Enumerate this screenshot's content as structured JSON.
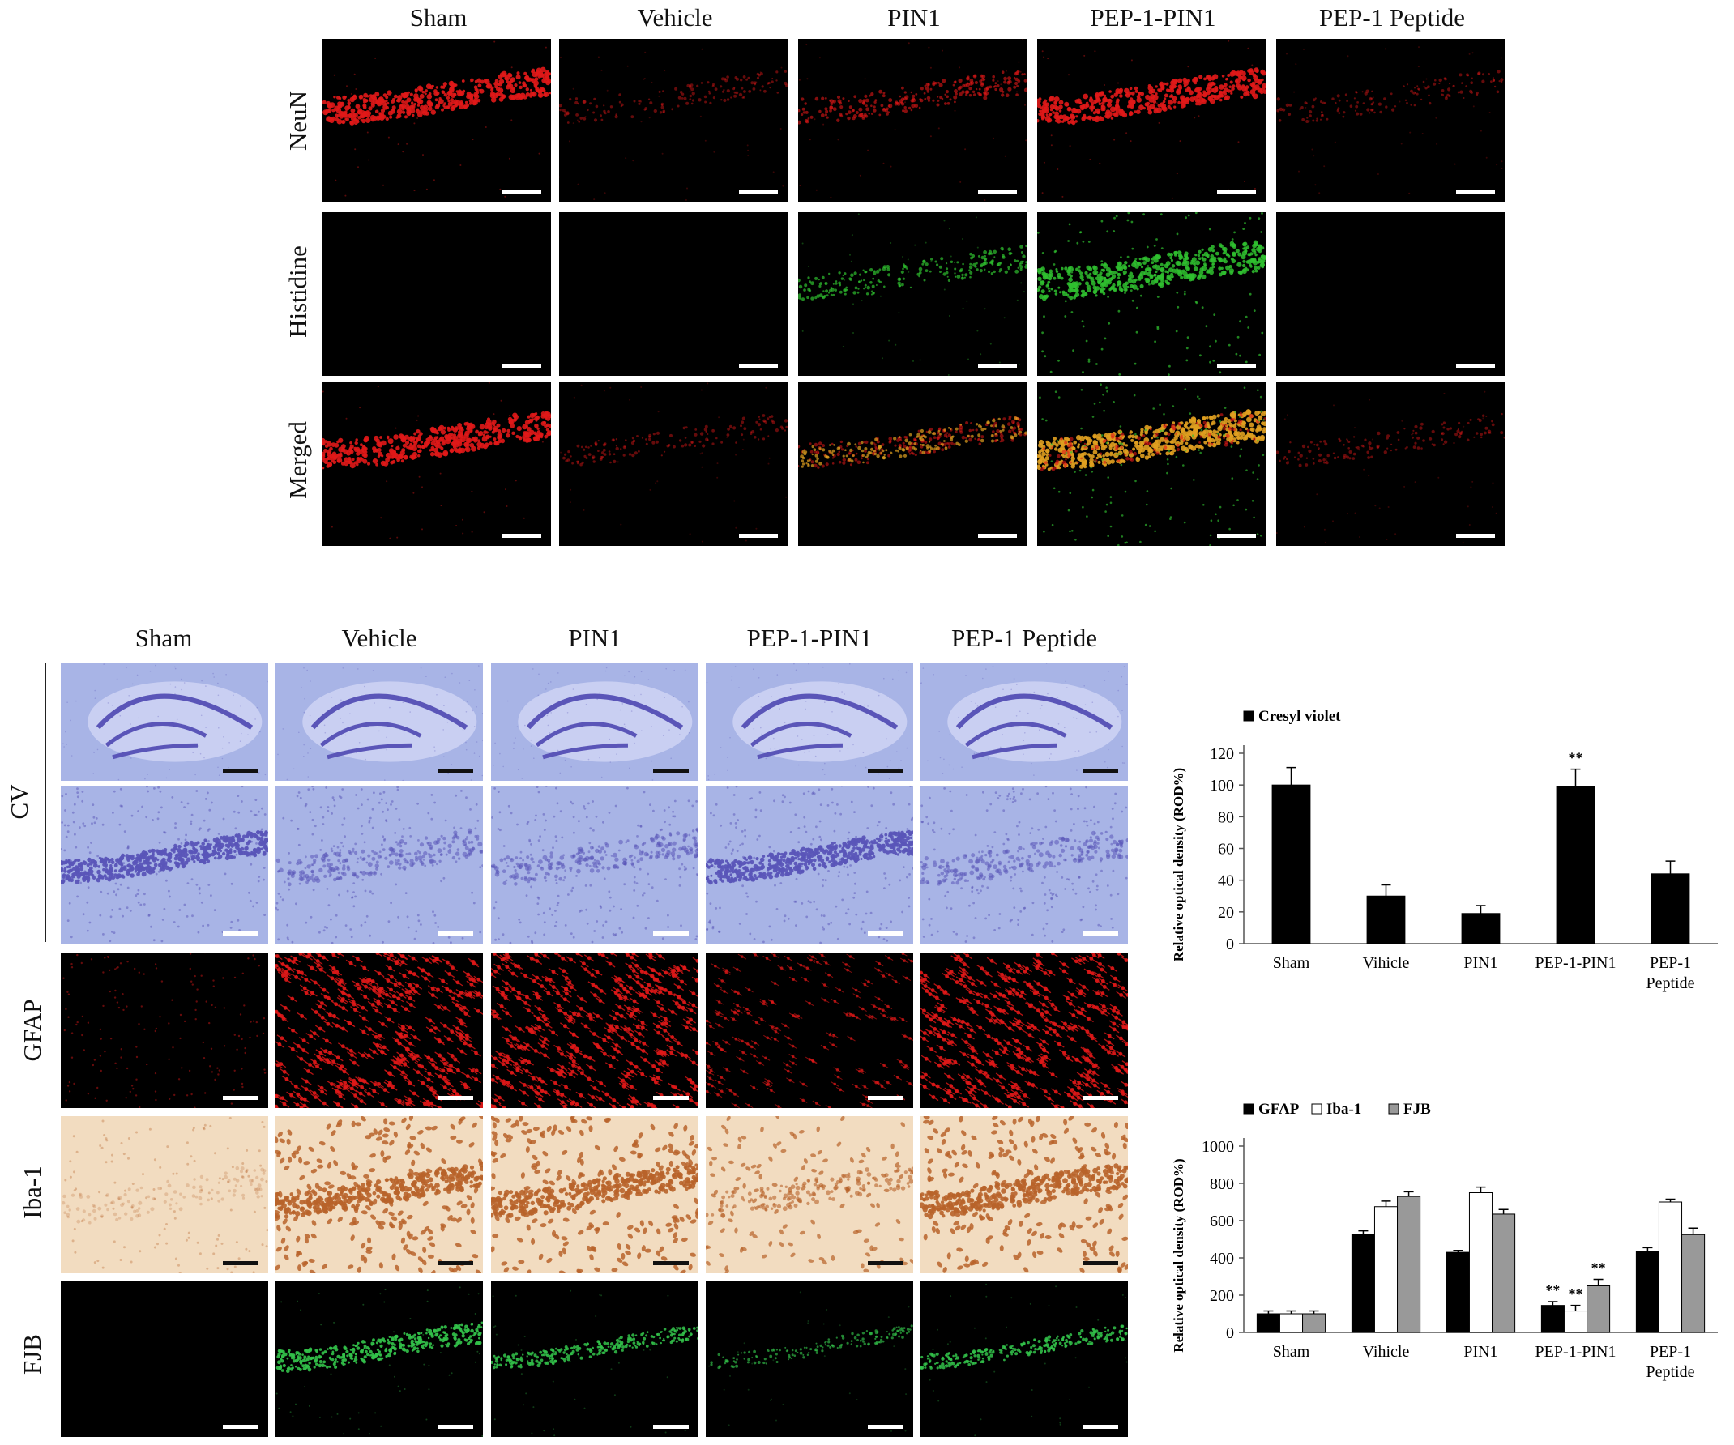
{
  "figure": {
    "top_block": {
      "columns": [
        "Sham",
        "Vehicle",
        "PIN1",
        "PEP-1-PIN1",
        "PEP-1 Peptide"
      ],
      "rows": [
        "NeuN",
        "Histidine",
        "Merged"
      ]
    },
    "bottom_block": {
      "columns": [
        "Sham",
        "Vehicle",
        "PIN1",
        "PEP-1-PIN1",
        "PEP-1 Peptide"
      ],
      "rows": [
        "CV",
        "GFAP",
        "Iba-1",
        "FJB"
      ]
    },
    "colors": {
      "neun_red": "#e01818",
      "histidine_green": "#2fbf2f",
      "merged_orange": "#e0a020",
      "cv_violet": "#5a55b8",
      "cv_background": "#a8b4e6",
      "iba_brown": "#b8632a",
      "iba_background": "#f2dcc0",
      "fjb_green": "#33c24a",
      "bar_black": "#000000",
      "bar_white": "#ffffff",
      "bar_gray": "#999999"
    }
  },
  "chart_data": [
    {
      "type": "bar",
      "legend": [
        "Cresyl violet"
      ],
      "legend_position": "top-left",
      "ylabel": "Relative optical density (ROD%)",
      "ylim": [
        0,
        120
      ],
      "yticks": [
        "0",
        "20",
        "40",
        "60",
        "80",
        "100",
        "120"
      ],
      "categories": [
        "Sham",
        "Vihicle",
        "PIN1",
        "PEP-1-PIN1",
        "PEP-1 Peptide"
      ],
      "category_lines": [
        [
          "Sham"
        ],
        [
          "Vihicle"
        ],
        [
          "PIN1"
        ],
        [
          "PEP-1-PIN1"
        ],
        [
          "PEP-1",
          "Peptide"
        ]
      ],
      "series": [
        {
          "name": "Cresyl violet",
          "color": "#000000",
          "values": [
            100,
            30,
            19,
            99,
            44
          ],
          "errors": [
            11,
            7,
            5,
            11,
            8
          ],
          "annotations": [
            "",
            "",
            "",
            "**",
            ""
          ]
        }
      ],
      "grid": false
    },
    {
      "type": "bar",
      "legend": [
        "GFAP",
        "Iba-1",
        "FJB"
      ],
      "legend_position": "top-left",
      "ylabel": "Relative optical density (ROD%)",
      "ylim": [
        0,
        1000
      ],
      "yticks": [
        "0",
        "200",
        "400",
        "600",
        "800",
        "1000"
      ],
      "categories": [
        "Sham",
        "Vihicle",
        "PIN1",
        "PEP-1-PIN1",
        "PEP-1 Peptide"
      ],
      "category_lines": [
        [
          "Sham"
        ],
        [
          "Vihicle"
        ],
        [
          "PIN1"
        ],
        [
          "PEP-1-PIN1"
        ],
        [
          "PEP-1",
          "Peptide"
        ]
      ],
      "series": [
        {
          "name": "GFAP",
          "color": "#000000",
          "values": [
            100,
            525,
            430,
            145,
            435
          ],
          "errors": [
            15,
            20,
            10,
            20,
            20
          ],
          "annotations": [
            "",
            "",
            "",
            "**",
            ""
          ]
        },
        {
          "name": "Iba-1",
          "color": "#ffffff",
          "values": [
            100,
            675,
            750,
            115,
            700
          ],
          "errors": [
            15,
            30,
            30,
            30,
            15
          ],
          "annotations": [
            "",
            "",
            "",
            "**",
            ""
          ]
        },
        {
          "name": "FJB",
          "color": "#999999",
          "values": [
            100,
            730,
            635,
            250,
            525
          ],
          "errors": [
            15,
            25,
            25,
            35,
            35
          ],
          "annotations": [
            "",
            "",
            "",
            "**",
            ""
          ]
        }
      ],
      "grid": false
    }
  ]
}
